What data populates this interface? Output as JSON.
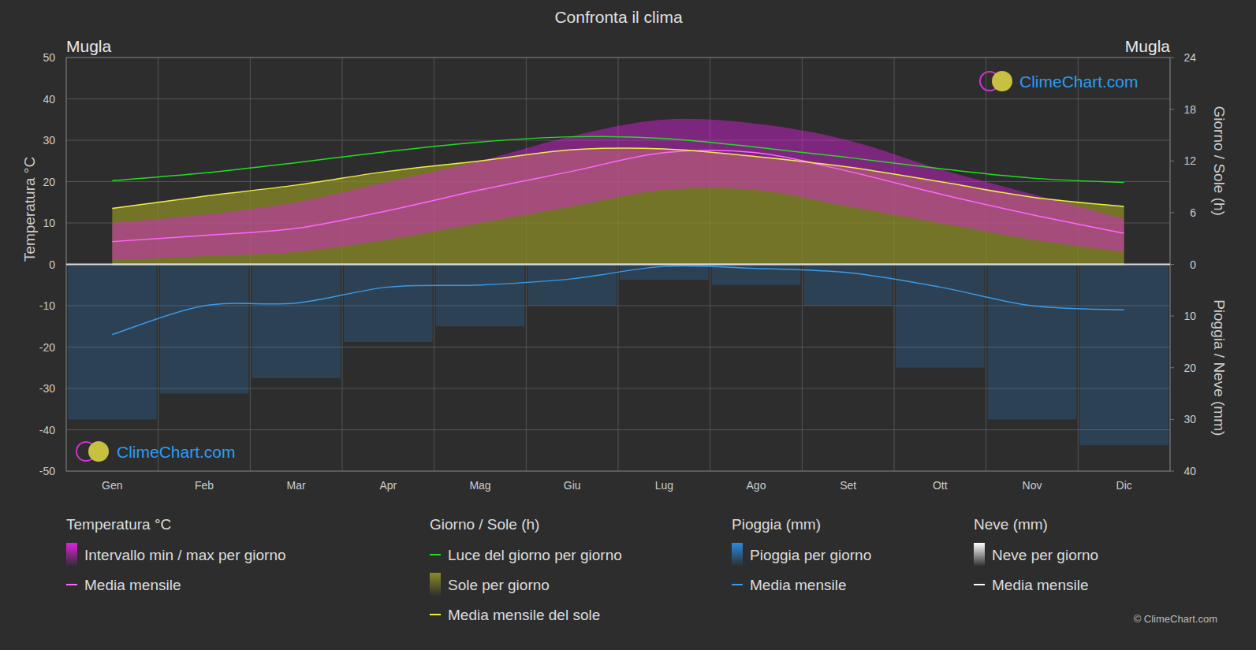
{
  "chart_data": {
    "type": "line",
    "title": "Confronta il clima",
    "location_left": "Mugla",
    "location_right": "Mugla",
    "watermark": "ClimeChart.com",
    "copyright": "© ClimeChart.com",
    "y_label": "Temperatura °C",
    "y2_label": "Giorno / Sole (h)",
    "y3_label": "Pioggia / Neve (mm)",
    "categories": [
      "Gen",
      "Feb",
      "Mar",
      "Apr",
      "Mag",
      "Giu",
      "Lug",
      "Ago",
      "Set",
      "Ott",
      "Nov",
      "Dic"
    ],
    "ylim": [
      -50,
      50
    ],
    "yticks": [
      -50,
      -40,
      -30,
      -20,
      -10,
      0,
      10,
      20,
      30,
      40,
      50
    ],
    "y2lim": [
      0,
      24
    ],
    "y2ticks": [
      0,
      6,
      12,
      18,
      24
    ],
    "y3lim": [
      0,
      40
    ],
    "y3ticks": [
      10,
      20,
      30,
      40
    ],
    "grid": true,
    "series": [
      {
        "name": "Intervallo min / max per giorno",
        "group": "Temperatura °C",
        "type": "band",
        "color": "#e020e0",
        "low": [
          1,
          2,
          3,
          6,
          10,
          14,
          18,
          18,
          14,
          10,
          6,
          3
        ],
        "high": [
          10,
          12,
          15,
          20,
          25,
          31,
          35,
          34,
          30,
          23,
          17,
          11
        ]
      },
      {
        "name": "Media mensile",
        "group": "Temperatura °C",
        "type": "line",
        "color": "#ff66ff",
        "values": [
          5.5,
          7,
          8.7,
          13,
          18,
          22.5,
          27,
          27,
          22.5,
          17,
          12,
          7.5
        ]
      },
      {
        "name": "Luce del giorno per giorno",
        "group": "Giorno / Sole (h)",
        "type": "line",
        "color": "#22dd22",
        "axis": "y2",
        "values": [
          9.7,
          10.6,
          11.8,
          13.1,
          14.2,
          14.8,
          14.6,
          13.6,
          12.4,
          11.1,
          10.0,
          9.5
        ]
      },
      {
        "name": "Sole per giorno",
        "group": "Giorno / Sole (h)",
        "type": "area",
        "color": "#8c8c28",
        "axis": "y2",
        "values": [
          6.5,
          7.9,
          9.2,
          10.8,
          12.0,
          13.3,
          13.4,
          12.5,
          11.3,
          9.6,
          7.8,
          6.7
        ]
      },
      {
        "name": "Media mensile del sole",
        "group": "Giorno / Sole (h)",
        "type": "line",
        "color": "#eeee44",
        "axis": "y2",
        "values": [
          6.5,
          7.9,
          9.2,
          10.8,
          12.0,
          13.3,
          13.4,
          12.5,
          11.3,
          9.6,
          7.8,
          6.7
        ]
      },
      {
        "name": "Pioggia per giorno",
        "group": "Pioggia (mm)",
        "type": "bar",
        "color": "#2a8adf",
        "axis": "y3",
        "values": [
          30,
          25,
          22,
          15,
          12,
          8,
          3,
          4,
          8,
          20,
          30,
          35
        ]
      },
      {
        "name": "Media mensile",
        "group": "Pioggia (mm)",
        "type": "line",
        "color": "#3a9ae8",
        "axis": "y3",
        "values": [
          13.6,
          8.0,
          7.5,
          4.4,
          4.0,
          2.8,
          0.4,
          0.8,
          1.6,
          4.4,
          8.0,
          8.8
        ]
      },
      {
        "name": "Neve per giorno",
        "group": "Neve (mm)",
        "type": "bar",
        "color": "#ffffff",
        "axis": "y3",
        "values": [
          0,
          0,
          0,
          0,
          0,
          0,
          0,
          0,
          0,
          0,
          0,
          0
        ]
      },
      {
        "name": "Media mensile",
        "group": "Neve (mm)",
        "type": "line",
        "color": "#ffffff",
        "axis": "y3",
        "values": [
          0,
          0,
          0,
          0,
          0,
          0,
          0,
          0,
          0,
          0,
          0,
          0
        ]
      }
    ]
  }
}
